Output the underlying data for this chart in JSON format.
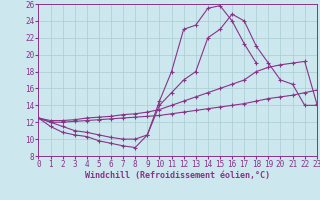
{
  "xlabel": "Windchill (Refroidissement éolien,°C)",
  "bg_color": "#cce8ee",
  "grid_color": "#aaccd4",
  "line_color": "#883388",
  "xlim": [
    0,
    23
  ],
  "ylim": [
    8,
    26
  ],
  "xticks": [
    0,
    1,
    2,
    3,
    4,
    5,
    6,
    7,
    8,
    9,
    10,
    11,
    12,
    13,
    14,
    15,
    16,
    17,
    18,
    19,
    20,
    21,
    22,
    23
  ],
  "yticks": [
    8,
    10,
    12,
    14,
    16,
    18,
    20,
    22,
    24,
    26
  ],
  "curve_arch_x": [
    0,
    1,
    2,
    3,
    4,
    5,
    6,
    7,
    8,
    9,
    10,
    11,
    12,
    13,
    14,
    15,
    16,
    17,
    18
  ],
  "curve_arch_y": [
    12.5,
    11.5,
    10.8,
    10.5,
    10.3,
    9.8,
    9.5,
    9.2,
    9.0,
    10.5,
    14.5,
    18.0,
    23.0,
    23.5,
    25.5,
    25.8,
    24.0,
    21.3,
    19.0
  ],
  "curve_mid_x": [
    0,
    1,
    2,
    3,
    4,
    5,
    6,
    7,
    8,
    9,
    10,
    11,
    12,
    13,
    14,
    15,
    16,
    17,
    18,
    19,
    20,
    21,
    22,
    23
  ],
  "curve_mid_y": [
    12.5,
    12.0,
    11.5,
    11.0,
    10.8,
    10.5,
    10.2,
    10.0,
    10.0,
    10.5,
    14.0,
    15.5,
    17.0,
    18.0,
    22.0,
    23.0,
    24.8,
    24.0,
    21.0,
    19.0,
    17.0,
    16.5,
    14.0,
    14.0
  ],
  "curve_diag_x": [
    0,
    1,
    2,
    3,
    4,
    5,
    6,
    7,
    8,
    9,
    10,
    11,
    12,
    13,
    14,
    15,
    16,
    17,
    18,
    19,
    20,
    21,
    22,
    23
  ],
  "curve_diag_y": [
    12.5,
    12.2,
    12.2,
    12.3,
    12.5,
    12.6,
    12.7,
    12.9,
    13.0,
    13.2,
    13.5,
    14.0,
    14.5,
    15.0,
    15.5,
    16.0,
    16.5,
    17.0,
    18.0,
    18.5,
    18.8,
    19.0,
    19.2,
    14.2
  ],
  "curve_low_x": [
    0,
    1,
    2,
    3,
    4,
    5,
    6,
    7,
    8,
    9,
    10,
    11,
    12,
    13,
    14,
    15,
    16,
    17,
    18,
    19,
    20,
    21,
    22,
    23
  ],
  "curve_low_y": [
    12.5,
    12.0,
    12.0,
    12.1,
    12.2,
    12.3,
    12.4,
    12.5,
    12.6,
    12.7,
    12.8,
    13.0,
    13.2,
    13.4,
    13.6,
    13.8,
    14.0,
    14.2,
    14.5,
    14.8,
    15.0,
    15.2,
    15.5,
    15.8
  ],
  "tick_fontsize": 5.5,
  "label_fontsize": 6.0
}
